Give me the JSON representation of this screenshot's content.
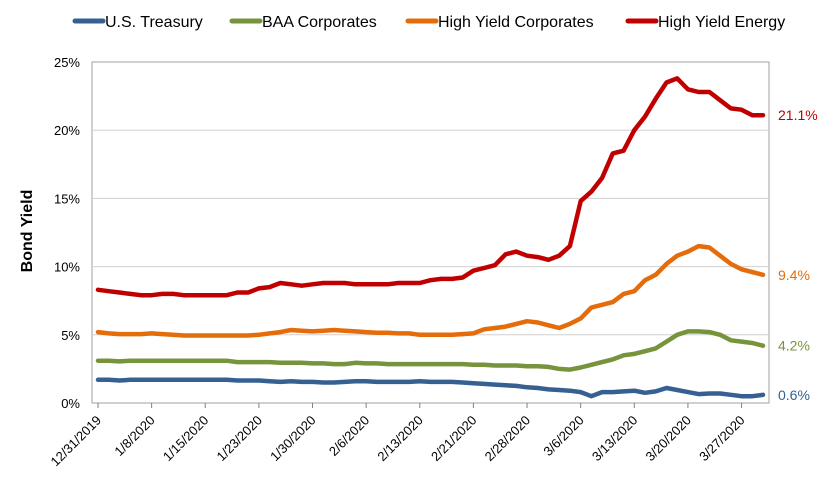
{
  "chart_data": {
    "type": "line",
    "title": "",
    "xlabel": "",
    "ylabel": "Bond Yield",
    "ylim": [
      0,
      25
    ],
    "y_ticks": [
      "0%",
      "5%",
      "10%",
      "15%",
      "20%",
      "25%"
    ],
    "y_tick_values": [
      0,
      5,
      10,
      15,
      20,
      25
    ],
    "grid": "horizontal",
    "legend_position": "top",
    "x_tick_labels": [
      "12/31/2019",
      "1/8/2020",
      "1/15/2020",
      "1/23/2020",
      "1/30/2020",
      "2/6/2020",
      "2/13/2020",
      "2/21/2020",
      "2/28/2020",
      "3/6/2020",
      "3/13/2020",
      "3/20/2020",
      "3/27/2020"
    ],
    "x_tick_indices": [
      0,
      5,
      10,
      15,
      20,
      25,
      30,
      35,
      40,
      45,
      50,
      55,
      60
    ],
    "x": [
      "12/31/2019",
      "1/1/2020",
      "1/2/2020",
      "1/3/2020",
      "1/6/2020",
      "1/8/2020",
      "1/9/2020",
      "1/10/2020",
      "1/13/2020",
      "1/14/2020",
      "1/15/2020",
      "1/16/2020",
      "1/17/2020",
      "1/21/2020",
      "1/22/2020",
      "1/23/2020",
      "1/24/2020",
      "1/27/2020",
      "1/28/2020",
      "1/29/2020",
      "1/30/2020",
      "1/31/2020",
      "2/3/2020",
      "2/4/2020",
      "2/5/2020",
      "2/6/2020",
      "2/7/2020",
      "2/10/2020",
      "2/11/2020",
      "2/12/2020",
      "2/13/2020",
      "2/14/2020",
      "2/18/2020",
      "2/19/2020",
      "2/20/2020",
      "2/21/2020",
      "2/24/2020",
      "2/25/2020",
      "2/26/2020",
      "2/27/2020",
      "2/28/2020",
      "3/2/2020",
      "3/3/2020",
      "3/4/2020",
      "3/5/2020",
      "3/6/2020",
      "3/9/2020",
      "3/10/2020",
      "3/11/2020",
      "3/12/2020",
      "3/13/2020",
      "3/16/2020",
      "3/17/2020",
      "3/18/2020",
      "3/19/2020",
      "3/20/2020",
      "3/23/2020",
      "3/24/2020",
      "3/25/2020",
      "3/26/2020",
      "3/27/2020",
      "3/30/2020",
      "3/31/2020"
    ],
    "series": [
      {
        "name": "U.S. Treasury",
        "color": "#376092",
        "end_label": "0.6%",
        "values": [
          1.7,
          1.7,
          1.65,
          1.7,
          1.7,
          1.7,
          1.7,
          1.7,
          1.7,
          1.7,
          1.7,
          1.7,
          1.7,
          1.65,
          1.65,
          1.65,
          1.6,
          1.55,
          1.6,
          1.55,
          1.55,
          1.5,
          1.5,
          1.55,
          1.6,
          1.6,
          1.55,
          1.55,
          1.55,
          1.55,
          1.6,
          1.55,
          1.55,
          1.55,
          1.5,
          1.45,
          1.4,
          1.35,
          1.3,
          1.25,
          1.15,
          1.1,
          1.0,
          0.95,
          0.9,
          0.8,
          0.5,
          0.8,
          0.8,
          0.85,
          0.9,
          0.75,
          0.85,
          1.1,
          0.95,
          0.8,
          0.65,
          0.7,
          0.7,
          0.6,
          0.5,
          0.5,
          0.6
        ]
      },
      {
        "name": "BAA Corporates",
        "color": "#77933c",
        "end_label": "4.2%",
        "values": [
          3.1,
          3.1,
          3.05,
          3.1,
          3.1,
          3.1,
          3.1,
          3.1,
          3.1,
          3.1,
          3.1,
          3.1,
          3.1,
          3.0,
          3.0,
          3.0,
          3.0,
          2.95,
          2.95,
          2.95,
          2.9,
          2.9,
          2.85,
          2.85,
          2.95,
          2.9,
          2.9,
          2.85,
          2.85,
          2.85,
          2.85,
          2.85,
          2.85,
          2.85,
          2.85,
          2.8,
          2.8,
          2.75,
          2.75,
          2.75,
          2.7,
          2.7,
          2.65,
          2.5,
          2.45,
          2.6,
          2.8,
          3.0,
          3.2,
          3.5,
          3.6,
          3.8,
          4.0,
          4.5,
          5.0,
          5.25,
          5.25,
          5.2,
          5.0,
          4.6,
          4.5,
          4.4,
          4.2
        ]
      },
      {
        "name": "High Yield Corporates",
        "color": "#e46c0a",
        "end_label": "9.4%",
        "values": [
          5.2,
          5.1,
          5.05,
          5.05,
          5.05,
          5.1,
          5.05,
          5.0,
          4.95,
          4.95,
          4.95,
          4.95,
          4.95,
          4.95,
          4.95,
          5.0,
          5.1,
          5.2,
          5.35,
          5.3,
          5.25,
          5.3,
          5.35,
          5.3,
          5.25,
          5.2,
          5.15,
          5.15,
          5.1,
          5.1,
          5.0,
          5.0,
          5.0,
          5.0,
          5.05,
          5.1,
          5.4,
          5.5,
          5.6,
          5.8,
          6.0,
          5.9,
          5.7,
          5.5,
          5.8,
          6.2,
          7.0,
          7.2,
          7.4,
          8.0,
          8.2,
          9.0,
          9.4,
          10.2,
          10.8,
          11.1,
          11.5,
          11.4,
          10.8,
          10.2,
          9.8,
          9.6,
          9.4
        ]
      },
      {
        "name": "High Yield Energy",
        "color": "#c00000",
        "end_label": "21.1%",
        "values": [
          8.3,
          8.2,
          8.1,
          8.0,
          7.9,
          7.9,
          8.0,
          8.0,
          7.9,
          7.9,
          7.9,
          7.9,
          7.9,
          8.1,
          8.1,
          8.4,
          8.5,
          8.8,
          8.7,
          8.6,
          8.7,
          8.8,
          8.8,
          8.8,
          8.7,
          8.7,
          8.7,
          8.7,
          8.8,
          8.8,
          8.8,
          9.0,
          9.1,
          9.1,
          9.2,
          9.7,
          9.9,
          10.1,
          10.9,
          11.1,
          10.8,
          10.7,
          10.5,
          10.8,
          11.5,
          14.8,
          15.5,
          16.5,
          18.3,
          18.5,
          20.0,
          21.0,
          22.3,
          23.5,
          23.8,
          23.0,
          22.8,
          22.8,
          22.2,
          21.6,
          21.5,
          21.1,
          21.1
        ]
      }
    ]
  }
}
